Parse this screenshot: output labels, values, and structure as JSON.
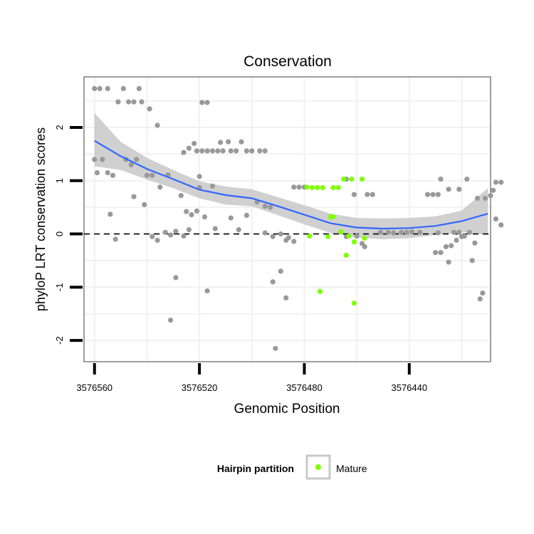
{
  "chart_data": {
    "type": "scatter",
    "title": "Conservation",
    "xlabel": "Genomic Position",
    "ylabel": "phyloP LRT conservation scores",
    "xlim": [
      3576564,
      3576409
    ],
    "x_reversed": true,
    "ylim": [
      -2.4,
      2.95
    ],
    "x_ticks": [
      3576560,
      3576520,
      3576480,
      3576440
    ],
    "x_tick_labels": [
      "3576560",
      "3576520",
      "3576480",
      "3576440"
    ],
    "y_ticks": [
      -2,
      -1,
      0,
      1,
      2
    ],
    "y_tick_labels": [
      "-2",
      "-1",
      "0",
      "1",
      "2"
    ],
    "reference_line": {
      "y": 0,
      "style": "dashed"
    },
    "grid": true,
    "legend": {
      "title": "Hairpin partition",
      "entries": [
        {
          "label": "Mature",
          "color": "#7fff00"
        }
      ],
      "position": "bottom"
    },
    "colors": {
      "other": "#999999",
      "mature": "#7fff00",
      "smooth": "#3366ff",
      "ribbon": "#c8c8c8"
    },
    "series": [
      {
        "name": "Other",
        "points": [
          [
            3576560,
            2.73
          ],
          [
            3576558,
            2.73
          ],
          [
            3576555,
            2.73
          ],
          [
            3576549,
            2.73
          ],
          [
            3576543,
            2.73
          ],
          [
            3576551,
            2.48
          ],
          [
            3576545,
            2.48
          ],
          [
            3576547,
            2.48
          ],
          [
            3576542,
            2.48
          ],
          [
            3576539,
            2.35
          ],
          [
            3576536,
            2.04
          ],
          [
            3576519,
            2.47
          ],
          [
            3576517,
            2.47
          ],
          [
            3576526,
            1.53
          ],
          [
            3576524,
            1.61
          ],
          [
            3576522,
            1.7
          ],
          [
            3576521,
            1.56
          ],
          [
            3576519,
            1.56
          ],
          [
            3576517,
            1.56
          ],
          [
            3576515,
            1.56
          ],
          [
            3576513,
            1.56
          ],
          [
            3576512,
            1.72
          ],
          [
            3576511,
            1.56
          ],
          [
            3576509,
            1.73
          ],
          [
            3576508,
            1.56
          ],
          [
            3576506,
            1.56
          ],
          [
            3576504,
            1.73
          ],
          [
            3576502,
            1.56
          ],
          [
            3576500,
            1.56
          ],
          [
            3576497,
            1.56
          ],
          [
            3576495,
            1.56
          ],
          [
            3576560,
            1.4
          ],
          [
            3576557,
            1.4
          ],
          [
            3576559,
            1.15
          ],
          [
            3576555,
            1.15
          ],
          [
            3576553,
            1.1
          ],
          [
            3576546,
            1.3
          ],
          [
            3576544,
            1.4
          ],
          [
            3576540,
            1.1
          ],
          [
            3576538,
            1.1
          ],
          [
            3576532,
            1.11
          ],
          [
            3576548,
            1.4
          ],
          [
            3576520,
            1.08
          ],
          [
            3576535,
            0.88
          ],
          [
            3576527,
            0.72
          ],
          [
            3576520,
            0.87
          ],
          [
            3576545,
            0.7
          ],
          [
            3576541,
            0.55
          ],
          [
            3576525,
            0.42
          ],
          [
            3576523,
            0.36
          ],
          [
            3576521,
            0.43
          ],
          [
            3576518,
            0.32
          ],
          [
            3576515,
            0.9
          ],
          [
            3576508,
            0.3
          ],
          [
            3576502,
            0.35
          ],
          [
            3576498,
            0.6
          ],
          [
            3576495,
            0.52
          ],
          [
            3576493,
            0.5
          ],
          [
            3576554,
            0.37
          ],
          [
            3576552,
            -0.1
          ],
          [
            3576538,
            -0.05
          ],
          [
            3576536,
            -0.12
          ],
          [
            3576533,
            0.03
          ],
          [
            3576531,
            -0.02
          ],
          [
            3576529,
            0.05
          ],
          [
            3576526,
            -0.04
          ],
          [
            3576524,
            0.08
          ],
          [
            3576514,
            0.1
          ],
          [
            3576505,
            0.08
          ],
          [
            3576495,
            0.02
          ],
          [
            3576492,
            -0.05
          ],
          [
            3576489,
            0.0
          ],
          [
            3576487,
            -0.12
          ],
          [
            3576484,
            0.88
          ],
          [
            3576482,
            0.88
          ],
          [
            3576480,
            0.88
          ],
          [
            3576486,
            -0.07
          ],
          [
            3576484,
            -0.14
          ],
          [
            3576492,
            -0.9
          ],
          [
            3576489,
            -0.7
          ],
          [
            3576487,
            -1.2
          ],
          [
            3576491,
            -2.15
          ],
          [
            3576531,
            -1.62
          ],
          [
            3576529,
            -0.82
          ],
          [
            3576517,
            -1.07
          ],
          [
            3576464,
            1.03
          ],
          [
            3576461,
            0.74
          ],
          [
            3576456,
            0.74
          ],
          [
            3576454,
            0.74
          ],
          [
            3576451,
            0.03
          ],
          [
            3576448,
            0.03
          ],
          [
            3576446,
            0.02
          ],
          [
            3576443,
            0.03
          ],
          [
            3576441,
            0.03
          ],
          [
            3576439,
            0.04
          ],
          [
            3576436,
            0.03
          ],
          [
            3576433,
            0.74
          ],
          [
            3576431,
            0.74
          ],
          [
            3576429,
            0.74
          ],
          [
            3576464,
            -0.05
          ],
          [
            3576460,
            -0.04
          ],
          [
            3576458,
            -0.18
          ],
          [
            3576457,
            -0.24
          ],
          [
            3576430,
            -0.35
          ],
          [
            3576428,
            -0.35
          ],
          [
            3576426,
            -0.24
          ],
          [
            3576424,
            -0.22
          ],
          [
            3576425,
            -0.53
          ],
          [
            3576422,
            -0.12
          ],
          [
            3576420,
            -0.05
          ],
          [
            3576419,
            -0.04
          ],
          [
            3576417,
            0.03
          ],
          [
            3576429,
            0.02
          ],
          [
            3576423,
            0.03
          ],
          [
            3576421,
            0.03
          ],
          [
            3576428,
            1.03
          ],
          [
            3576425,
            0.84
          ],
          [
            3576421,
            0.84
          ],
          [
            3576418,
            1.03
          ],
          [
            3576416,
            -0.5
          ],
          [
            3576415,
            -0.17
          ],
          [
            3576414,
            0.67
          ],
          [
            3576413,
            -1.22
          ],
          [
            3576412,
            -1.11
          ],
          [
            3576411,
            0.67
          ],
          [
            3576409,
            0.72
          ],
          [
            3576408,
            0.82
          ],
          [
            3576407,
            0.97
          ],
          [
            3576405,
            0.97
          ],
          [
            3576407,
            0.28
          ],
          [
            3576405,
            0.17
          ]
        ]
      },
      {
        "name": "Mature",
        "points": [
          [
            3576479,
            0.88
          ],
          [
            3576477,
            0.87
          ],
          [
            3576475,
            0.87
          ],
          [
            3576473,
            0.87
          ],
          [
            3576469,
            0.87
          ],
          [
            3576467,
            0.87
          ],
          [
            3576465,
            1.03
          ],
          [
            3576462,
            1.03
          ],
          [
            3576458,
            1.03
          ],
          [
            3576478,
            -0.04
          ],
          [
            3576470,
            0.32
          ],
          [
            3576469,
            0.32
          ],
          [
            3576471,
            -0.05
          ],
          [
            3576466,
            0.04
          ],
          [
            3576463,
            -0.04
          ],
          [
            3576461,
            -0.15
          ],
          [
            3576457,
            -0.08
          ],
          [
            3576464,
            -0.4
          ],
          [
            3576474,
            -1.08
          ],
          [
            3576461,
            -1.3
          ]
        ]
      }
    ],
    "smooth": {
      "x": [
        3576560,
        3576550,
        3576540,
        3576530,
        3576520,
        3576510,
        3576500,
        3576490,
        3576480,
        3576470,
        3576460,
        3576450,
        3576440,
        3576430,
        3576420,
        3576410
      ],
      "y": [
        1.75,
        1.46,
        1.22,
        1.03,
        0.83,
        0.73,
        0.67,
        0.52,
        0.36,
        0.2,
        0.12,
        0.1,
        0.11,
        0.15,
        0.24,
        0.38
      ],
      "lower": [
        1.27,
        1.2,
        1.02,
        0.86,
        0.67,
        0.55,
        0.52,
        0.35,
        0.18,
        0.02,
        -0.07,
        -0.1,
        -0.08,
        -0.02,
        0.04,
        -0.02
      ],
      "upper": [
        2.27,
        1.73,
        1.43,
        1.2,
        0.99,
        0.89,
        0.84,
        0.69,
        0.54,
        0.38,
        0.3,
        0.29,
        0.3,
        0.33,
        0.44,
        0.86
      ]
    }
  }
}
